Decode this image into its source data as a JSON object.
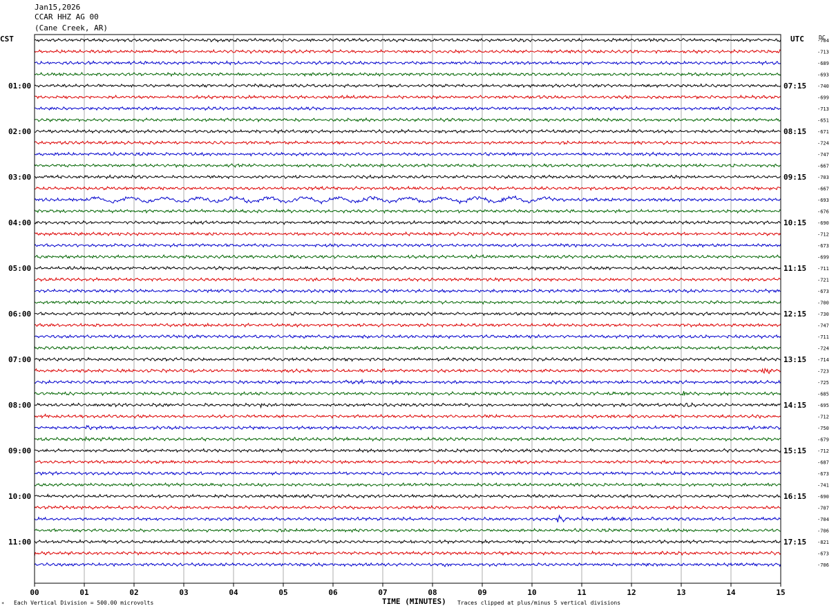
{
  "header": {
    "date": "Jan15,2026",
    "station": "CCAR HHZ AG 00",
    "location": "(Cane Creek, AR)"
  },
  "labels": {
    "left_tz": "CST",
    "right_tz": "UTC",
    "dc_heading": "DC",
    "xlabel": "TIME (MINUTES)",
    "footer_left": "Each Vertical Division =  500.00 microvolts",
    "footer_right": "Traces clipped at plus/minus 5 vertical divisions"
  },
  "chart_data": {
    "type": "line",
    "title": "CCAR HHZ AG 00 (Cane Creek, AR)",
    "xlabel": "TIME (MINUTES)",
    "xlim": [
      0,
      15
    ],
    "x_ticks": [
      "00",
      "01",
      "02",
      "03",
      "04",
      "05",
      "06",
      "07",
      "08",
      "09",
      "10",
      "11",
      "12",
      "13",
      "14",
      "15"
    ],
    "traces_per_hour": 4,
    "trace_minutes": 15,
    "trace_colors": [
      "#000000",
      "#dd0000",
      "#0000cc",
      "#006400"
    ],
    "left_hour_labels": [
      "01:00",
      "02:00",
      "03:00",
      "04:00",
      "05:00",
      "06:00",
      "07:00",
      "08:00",
      "09:00",
      "10:00",
      "11:00"
    ],
    "right_hour_labels": [
      "07:15",
      "08:15",
      "09:15",
      "10:15",
      "11:15",
      "12:15",
      "13:15",
      "14:15",
      "15:15",
      "16:15",
      "17:15"
    ],
    "dc_offsets": [
      -704,
      -713,
      -689,
      -693,
      -740,
      -699,
      -713,
      -651,
      -671,
      -724,
      -747,
      -667,
      -703,
      -667,
      -693,
      -676,
      -690,
      -712,
      -673,
      -699,
      -711,
      -721,
      -673,
      -700,
      -730,
      -747,
      -711,
      -724,
      -714,
      -723,
      -725,
      -685,
      -695,
      -712,
      -750,
      -679,
      -712,
      -687,
      -673,
      -741,
      -690,
      -707,
      -704,
      -706,
      -821,
      -673,
      -706
    ],
    "events": [
      {
        "trace": 14,
        "start_min": 1.0,
        "end_min": 10.5,
        "amp": 1.8
      },
      {
        "trace": 29,
        "start_min": 14.6,
        "end_min": 14.85,
        "amp": 4.5
      },
      {
        "trace": 29,
        "start_min": 7.0,
        "end_min": 7.1,
        "amp": 2.5
      },
      {
        "trace": 29,
        "start_min": 3.2,
        "end_min": 3.3,
        "amp": 2.0
      },
      {
        "trace": 30,
        "start_min": 6.2,
        "end_min": 7.6,
        "amp": 2.0
      },
      {
        "trace": 31,
        "start_min": 11.4,
        "end_min": 11.9,
        "amp": 2.2
      },
      {
        "trace": 31,
        "start_min": 13.0,
        "end_min": 13.2,
        "amp": 2.0
      },
      {
        "trace": 32,
        "start_min": 13.05,
        "end_min": 13.3,
        "amp": 2.8
      },
      {
        "trace": 32,
        "start_min": 4.55,
        "end_min": 4.6,
        "amp": 2.5
      },
      {
        "trace": 33,
        "start_min": 0.2,
        "end_min": 0.5,
        "amp": 2.5
      },
      {
        "trace": 33,
        "start_min": 14.4,
        "end_min": 14.8,
        "amp": 2.0
      },
      {
        "trace": 34,
        "start_min": 1.0,
        "end_min": 1.5,
        "amp": 2.0
      },
      {
        "trace": 34,
        "start_min": 14.2,
        "end_min": 15.0,
        "amp": 2.0
      },
      {
        "trace": 35,
        "start_min": 1.0,
        "end_min": 1.6,
        "amp": 1.5
      },
      {
        "trace": 42,
        "start_min": 10.5,
        "end_min": 10.8,
        "amp": 5.0
      },
      {
        "trace": 42,
        "start_min": 11.0,
        "end_min": 12.8,
        "amp": 1.5
      },
      {
        "trace": 43,
        "start_min": 14.3,
        "end_min": 14.5,
        "amp": 1.5
      },
      {
        "trace": 45,
        "start_min": 0.0,
        "end_min": 0.1,
        "amp": 3.0
      },
      {
        "trace": 45,
        "start_min": 12.6,
        "end_min": 12.8,
        "amp": 2.0
      },
      {
        "trace": 46,
        "start_min": 8.25,
        "end_min": 8.4,
        "amp": 4.5
      },
      {
        "trace": 46,
        "start_min": 12.6,
        "end_min": 12.8,
        "amp": 1.5
      }
    ]
  }
}
